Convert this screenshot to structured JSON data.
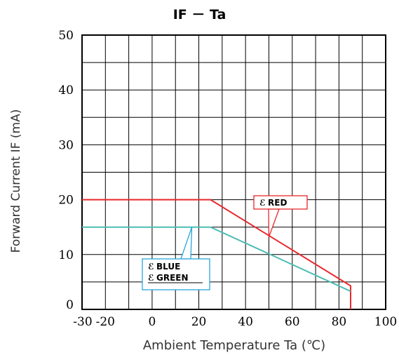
{
  "chart_data": {
    "type": "line",
    "title": "IF － Ta",
    "xlabel": "Ambient Temperature  Ta (℃)",
    "ylabel": "Forward Current  IF (mA)",
    "xlim": [
      -30,
      100
    ],
    "ylim": [
      0,
      50
    ],
    "x_ticks": [
      "-30",
      "-20",
      "0",
      "20",
      "40",
      "60",
      "80",
      "100"
    ],
    "x_tick_values": [
      -30,
      -20,
      0,
      20,
      40,
      60,
      80,
      100
    ],
    "y_ticks": [
      "0",
      "10",
      "20",
      "30",
      "40",
      "50"
    ],
    "y_tick_values": [
      0,
      10,
      20,
      30,
      40,
      50
    ],
    "grid": true,
    "series": [
      {
        "name": "RED",
        "color": "#e8282d",
        "points": [
          [
            -30,
            20
          ],
          [
            25,
            20
          ],
          [
            85,
            4.3
          ],
          [
            85,
            0
          ]
        ]
      },
      {
        "name": "BLUE / GREEN",
        "color": "#4dbdb4",
        "points": [
          [
            -30,
            15
          ],
          [
            25,
            15
          ],
          [
            85,
            3.3
          ]
        ]
      }
    ],
    "annotations": [
      {
        "id": "red",
        "lines": [
          "RED"
        ],
        "color": "#e8282d",
        "pointer_to": [
          50,
          13.2
        ]
      },
      {
        "id": "bluegreen",
        "lines": [
          "BLUE",
          "GREEN"
        ],
        "color": "#29a6d9",
        "pointer_to": [
          17,
          15
        ]
      }
    ]
  }
}
